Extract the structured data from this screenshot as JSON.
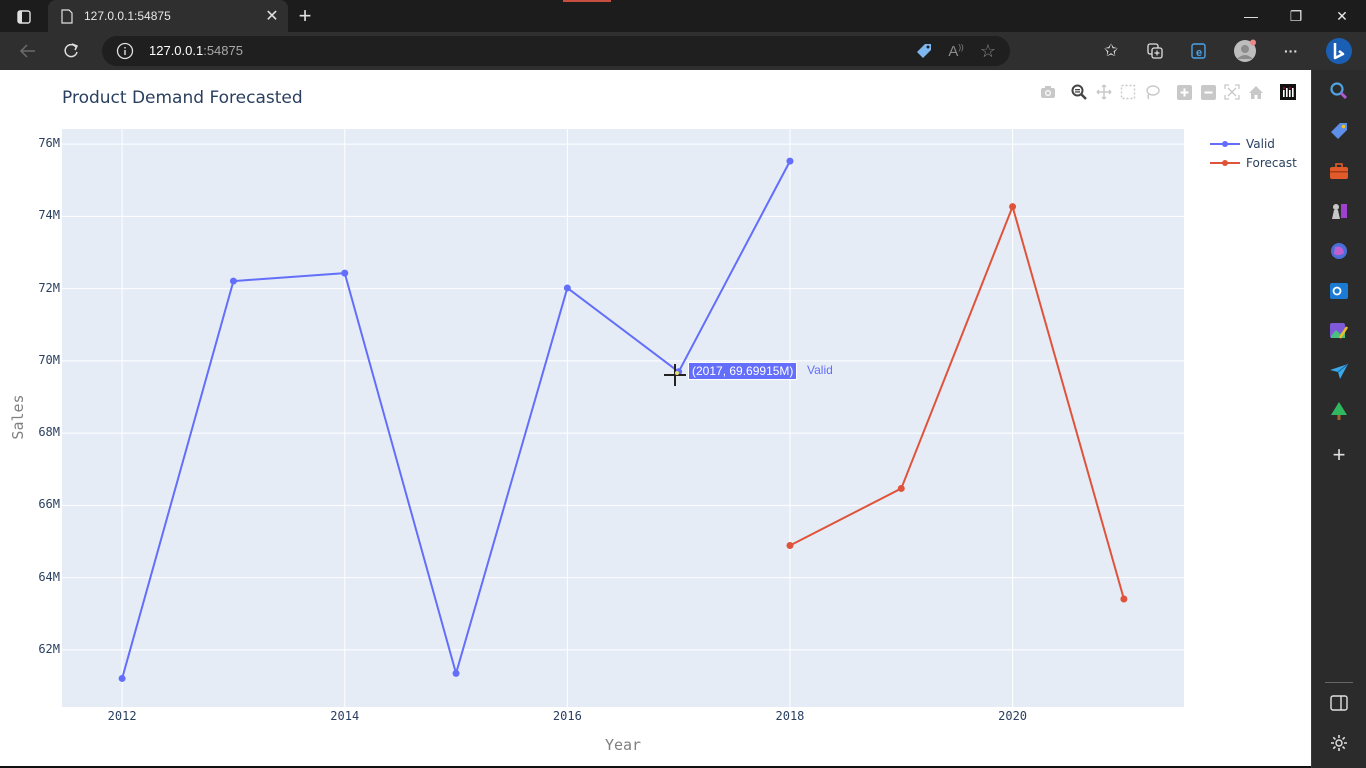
{
  "browser": {
    "tab_title": "127.0.0.1:54875",
    "url_host": "127.0.0.1",
    "url_port": ":54875",
    "window_controls": {
      "minimize": "—",
      "restore": "❐",
      "close": "✕"
    },
    "more_label": "···"
  },
  "sidebar": {
    "icons": [
      "search-icon",
      "shopping-tag-icon",
      "tools-icon",
      "games-icon",
      "copilot-icon",
      "outlook-icon",
      "designer-icon",
      "send-icon",
      "tree-icon",
      "add-icon"
    ],
    "bottom": [
      "split-screen-icon",
      "settings-icon"
    ]
  },
  "modebar": {
    "buttons": [
      "camera-icon",
      "zoom-icon",
      "pan-icon",
      "box-select-icon",
      "lasso-select-icon",
      "zoom-in-icon",
      "zoom-out-icon",
      "autoscale-icon",
      "reset-axes-icon",
      "plotly-logo-icon"
    ]
  },
  "hover": {
    "text": "(2017, 69.69915M)",
    "series": "Valid"
  },
  "colors": {
    "valid": "#636efa",
    "forecast": "#e0533b",
    "plot_bg": "#e5ecf6",
    "grid": "#ffffff",
    "text": "#2a3f5f"
  },
  "chart_data": {
    "type": "line",
    "title": "Product Demand Forecasted",
    "xlabel": "Year",
    "ylabel": "Sales",
    "x_ticks": [
      "2012",
      "2014",
      "2016",
      "2018",
      "2020"
    ],
    "y_ticks": [
      "62M",
      "64M",
      "66M",
      "68M",
      "70M",
      "72M",
      "74M",
      "76M"
    ],
    "xlim": [
      2011.46,
      2021.54
    ],
    "ylim": [
      60.42,
      76.42
    ],
    "grid": true,
    "legend_position": "top-right",
    "series": [
      {
        "name": "Valid",
        "color": "#636efa",
        "x": [
          2012,
          2013,
          2014,
          2015,
          2016,
          2017,
          2018
        ],
        "values": [
          61.21,
          72.21,
          72.43,
          61.35,
          72.02,
          69.69915,
          75.53
        ]
      },
      {
        "name": "Forecast",
        "color": "#e0533b",
        "x": [
          2018,
          2019,
          2020,
          2021
        ],
        "values": [
          64.89,
          66.47,
          74.27,
          63.41
        ]
      }
    ],
    "unit": "M"
  }
}
